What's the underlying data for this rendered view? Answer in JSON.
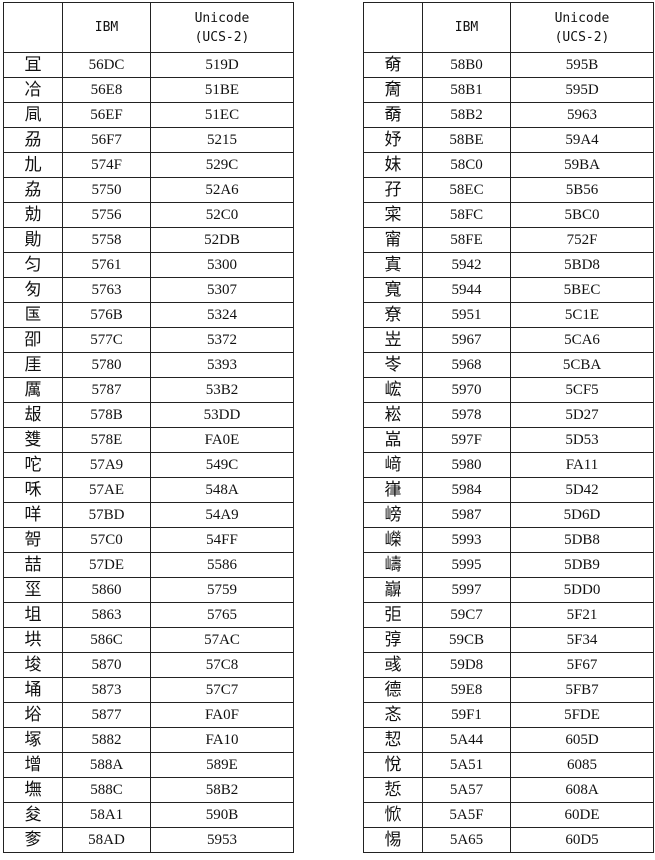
{
  "header": {
    "ibm": "IBM",
    "unicode": [
      "Unicode",
      "(UCS-2)"
    ]
  },
  "tables": [
    {
      "rows": [
        [
          "冝",
          "56DC",
          "519D"
        ],
        [
          "冾",
          "56E8",
          "51BE"
        ],
        [
          "凬",
          "56EF",
          "51EC"
        ],
        [
          "刕",
          "56F7",
          "5215"
        ],
        [
          "劜",
          "574F",
          "529C"
        ],
        [
          "劦",
          "5750",
          "52A6"
        ],
        [
          "勀",
          "5756",
          "52C0"
        ],
        [
          "勛",
          "5758",
          "52DB"
        ],
        [
          "匀",
          "5761",
          "5300"
        ],
        [
          "匇",
          "5763",
          "5307"
        ],
        [
          "匤",
          "576B",
          "5324"
        ],
        [
          "卲",
          "577C",
          "5372"
        ],
        [
          "厓",
          "5780",
          "5393"
        ],
        [
          "厲",
          "5787",
          "53B2"
        ],
        [
          "叝",
          "578B",
          "53DD"
        ],
        [
          "﨎",
          "578E",
          "FA0E"
        ],
        [
          "咜",
          "57A9",
          "549C"
        ],
        [
          "咊",
          "57AE",
          "548A"
        ],
        [
          "咩",
          "57BD",
          "54A9"
        ],
        [
          "哿",
          "57C0",
          "54FF"
        ],
        [
          "喆",
          "57DE",
          "5586"
        ],
        [
          "坙",
          "5860",
          "5759"
        ],
        [
          "坥",
          "5863",
          "5765"
        ],
        [
          "垬",
          "586C",
          "57AC"
        ],
        [
          "埈",
          "5870",
          "57C8"
        ],
        [
          "埇",
          "5873",
          "57C7"
        ],
        [
          "﨏",
          "5877",
          "FA0F"
        ],
        [
          "塚",
          "5882",
          "FA10"
        ],
        [
          "增",
          "588A",
          "589E"
        ],
        [
          "墲",
          "588C",
          "58B2"
        ],
        [
          "夋",
          "58A1",
          "590B"
        ],
        [
          "奓",
          "58AD",
          "5953"
        ]
      ]
    },
    {
      "rows": [
        [
          "奛",
          "58B0",
          "595B"
        ],
        [
          "奝",
          "58B1",
          "595D"
        ],
        [
          "奣",
          "58B2",
          "5963"
        ],
        [
          "妤",
          "58BE",
          "59A4"
        ],
        [
          "妺",
          "58C0",
          "59BA"
        ],
        [
          "孖",
          "58EC",
          "5B56"
        ],
        [
          "寀",
          "58FC",
          "5BC0"
        ],
        [
          "甯",
          "58FE",
          "752F"
        ],
        [
          "寘",
          "5942",
          "5BD8"
        ],
        [
          "寬",
          "5944",
          "5BEC"
        ],
        [
          "尞",
          "5951",
          "5C1E"
        ],
        [
          "岦",
          "5967",
          "5CA6"
        ],
        [
          "岺",
          "5968",
          "5CBA"
        ],
        [
          "峵",
          "5970",
          "5CF5"
        ],
        [
          "崧",
          "5978",
          "5D27"
        ],
        [
          "嵓",
          "597F",
          "5D53"
        ],
        [
          "﨑",
          "5980",
          "FA11"
        ],
        [
          "嵂",
          "5984",
          "5D42"
        ],
        [
          "嵭",
          "5987",
          "5D6D"
        ],
        [
          "嶸",
          "5993",
          "5DB8"
        ],
        [
          "嶹",
          "5995",
          "5DB9"
        ],
        [
          "巐",
          "5997",
          "5DD0"
        ],
        [
          "弡",
          "59C7",
          "5F21"
        ],
        [
          "弴",
          "59CB",
          "5F34"
        ],
        [
          "彧",
          "59D8",
          "5F67"
        ],
        [
          "德",
          "59E8",
          "5FB7"
        ],
        [
          "忞",
          "59F1",
          "5FDE"
        ],
        [
          "恝",
          "5A44",
          "605D"
        ],
        [
          "悅",
          "5A51",
          "6085"
        ],
        [
          "悊",
          "5A57",
          "608A"
        ],
        [
          "惞",
          "5A5F",
          "60DE"
        ],
        [
          "惕",
          "5A65",
          "60D5"
        ]
      ]
    }
  ]
}
